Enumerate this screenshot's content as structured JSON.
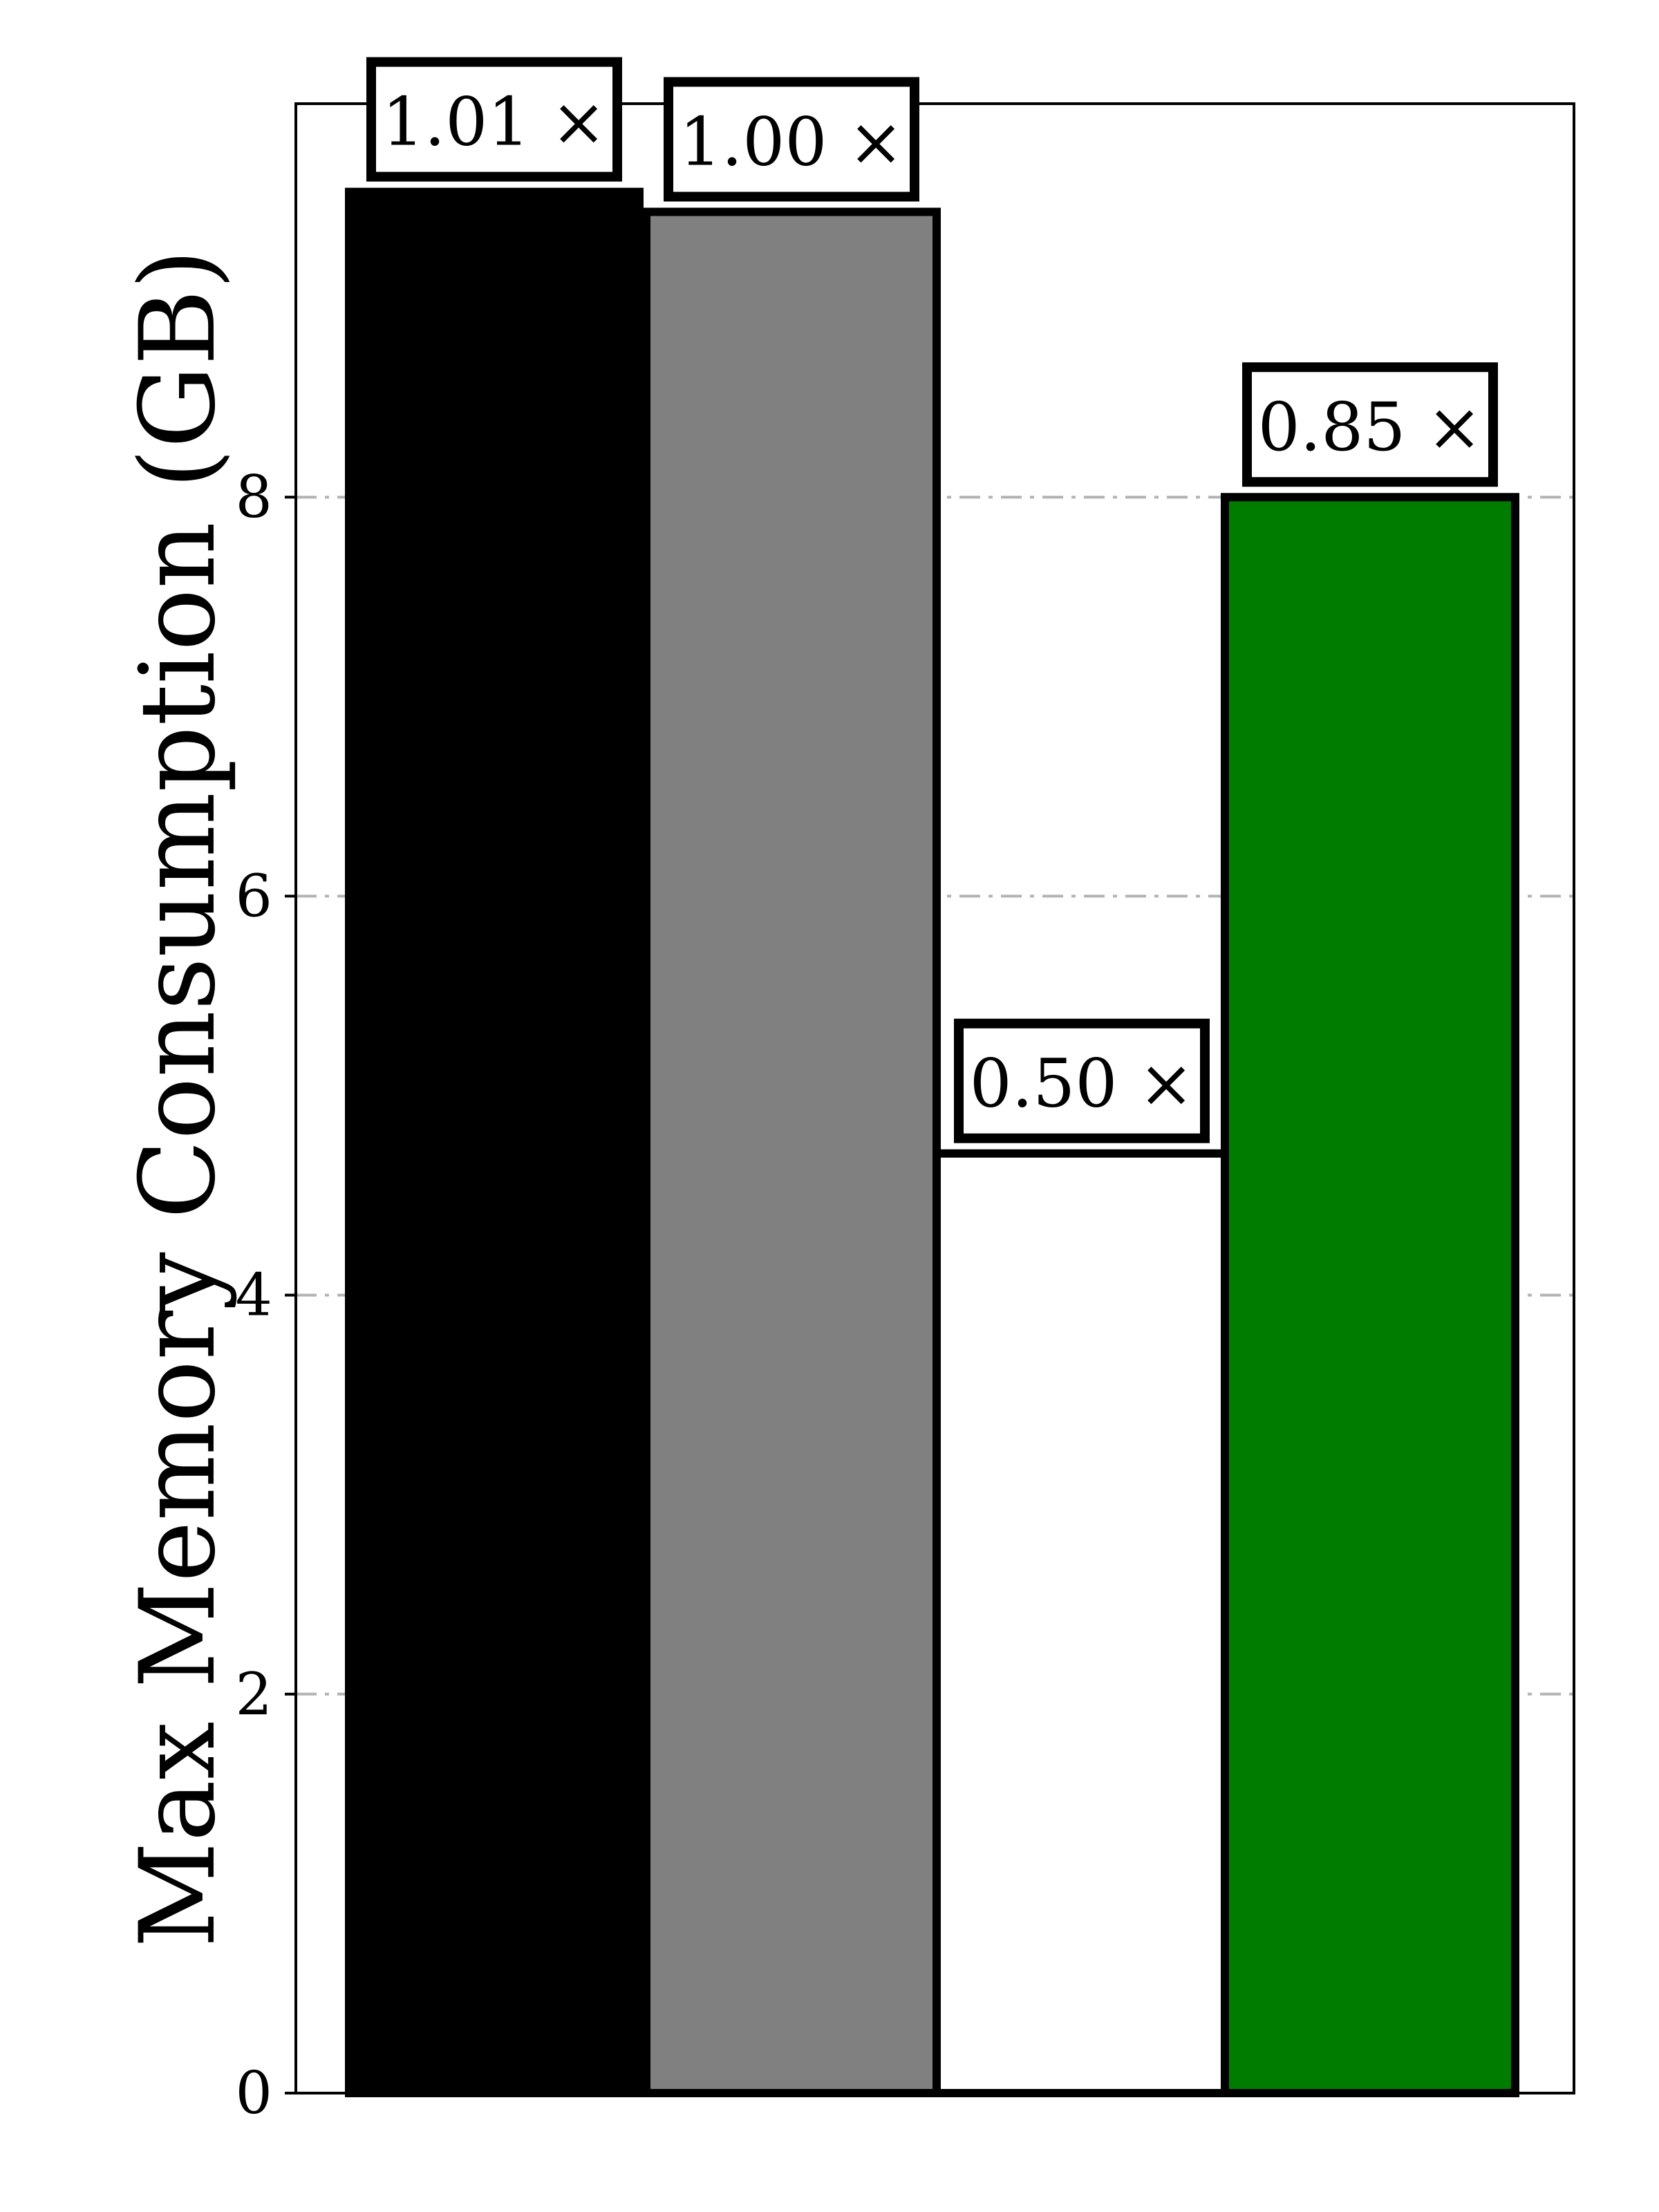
{
  "chart_data": {
    "type": "bar",
    "title": "",
    "xlabel": "",
    "ylabel": "Max Memory Consumption (GB)",
    "ylim": [
      0,
      10
    ],
    "yticks": [
      0,
      2,
      4,
      6,
      8
    ],
    "grid": true,
    "legend": "none",
    "categories": [
      "",
      "",
      "",
      ""
    ],
    "values": [
      9.53,
      9.43,
      4.71,
      8.0
    ],
    "colors": [
      "#000000",
      "#808080",
      "#ffffff",
      "#007d00"
    ],
    "annotations": [
      "1.01 ×",
      "1.00 ×",
      "0.50 ×",
      "0.85 ×"
    ]
  }
}
